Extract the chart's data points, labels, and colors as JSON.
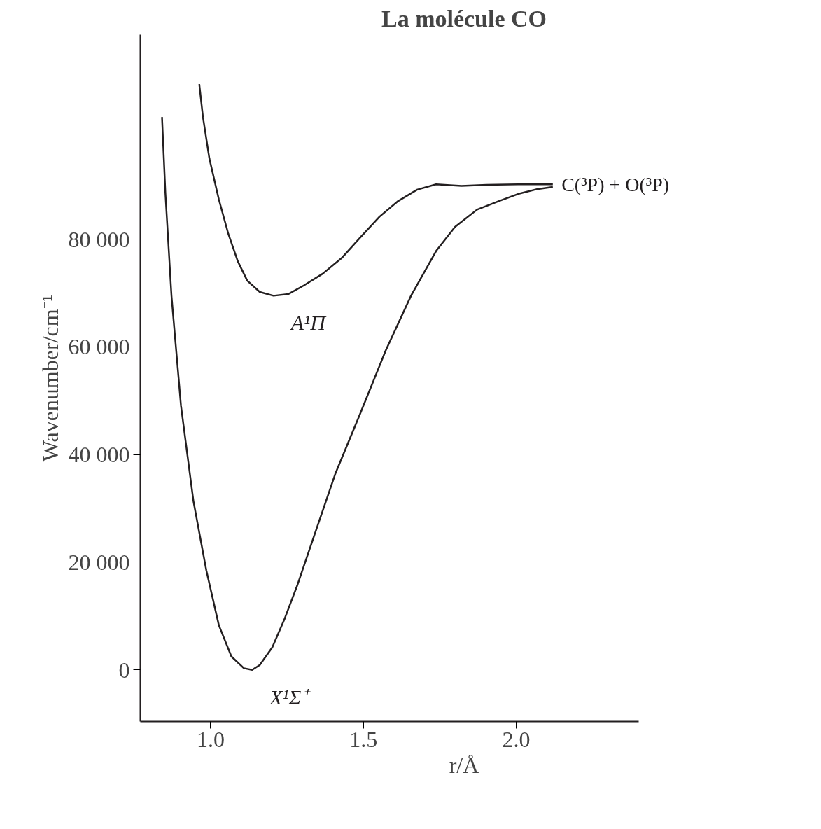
{
  "chart_data": {
    "type": "line",
    "title": "La molécule CO",
    "xlabel": "r/Å",
    "ylabel": "Wavenumber/cm⁻¹",
    "xlim": [
      0.77,
      2.4
    ],
    "ylim": [
      -9600,
      118000
    ],
    "xticks": [
      {
        "value": 1.0,
        "label": "1.0"
      },
      {
        "value": 1.5,
        "label": "1.5"
      },
      {
        "value": 2.0,
        "label": "2.0"
      }
    ],
    "yticks": [
      0,
      {
        "value": 20000,
        "label": "20 000"
      },
      {
        "value": 40000,
        "label": "40 000"
      },
      {
        "value": 60000,
        "label": "60 000"
      },
      {
        "value": 80000,
        "label": "80 000"
      }
    ],
    "series": [
      {
        "name": "X¹Σ⁺",
        "color": "#231f20",
        "x": [
          0.841,
          0.852,
          0.872,
          0.903,
          0.944,
          0.986,
          1.027,
          1.068,
          1.109,
          1.136,
          1.161,
          1.202,
          1.243,
          1.285,
          1.346,
          1.408,
          1.491,
          1.573,
          1.656,
          1.738,
          1.8,
          1.872,
          1.944,
          2.006,
          2.068,
          2.12
        ],
        "values": [
          102700,
          88600,
          69500,
          49100,
          31300,
          18500,
          8300,
          2500,
          300,
          0,
          900,
          4200,
          9600,
          15900,
          26100,
          36400,
          47800,
          59300,
          69500,
          77800,
          82300,
          85500,
          87100,
          88400,
          89300,
          89700
        ]
      },
      {
        "name": "A¹Π",
        "color": "#231f20",
        "x": [
          0.963,
          0.975,
          0.996,
          1.027,
          1.058,
          1.089,
          1.12,
          1.161,
          1.206,
          1.254,
          1.305,
          1.367,
          1.429,
          1.491,
          1.553,
          1.614,
          1.676,
          1.738,
          1.821,
          1.903,
          2.006,
          2.12
        ],
        "values": [
          108800,
          102700,
          95000,
          87400,
          81000,
          75900,
          72300,
          70200,
          69500,
          69800,
          71400,
          73600,
          76500,
          80400,
          84200,
          87100,
          89200,
          90200,
          89900,
          90100,
          90200,
          90200
        ]
      }
    ],
    "annotations": [
      {
        "text": "C(³P) + O(³P)",
        "x": 2.13,
        "y": 90200
      }
    ]
  }
}
